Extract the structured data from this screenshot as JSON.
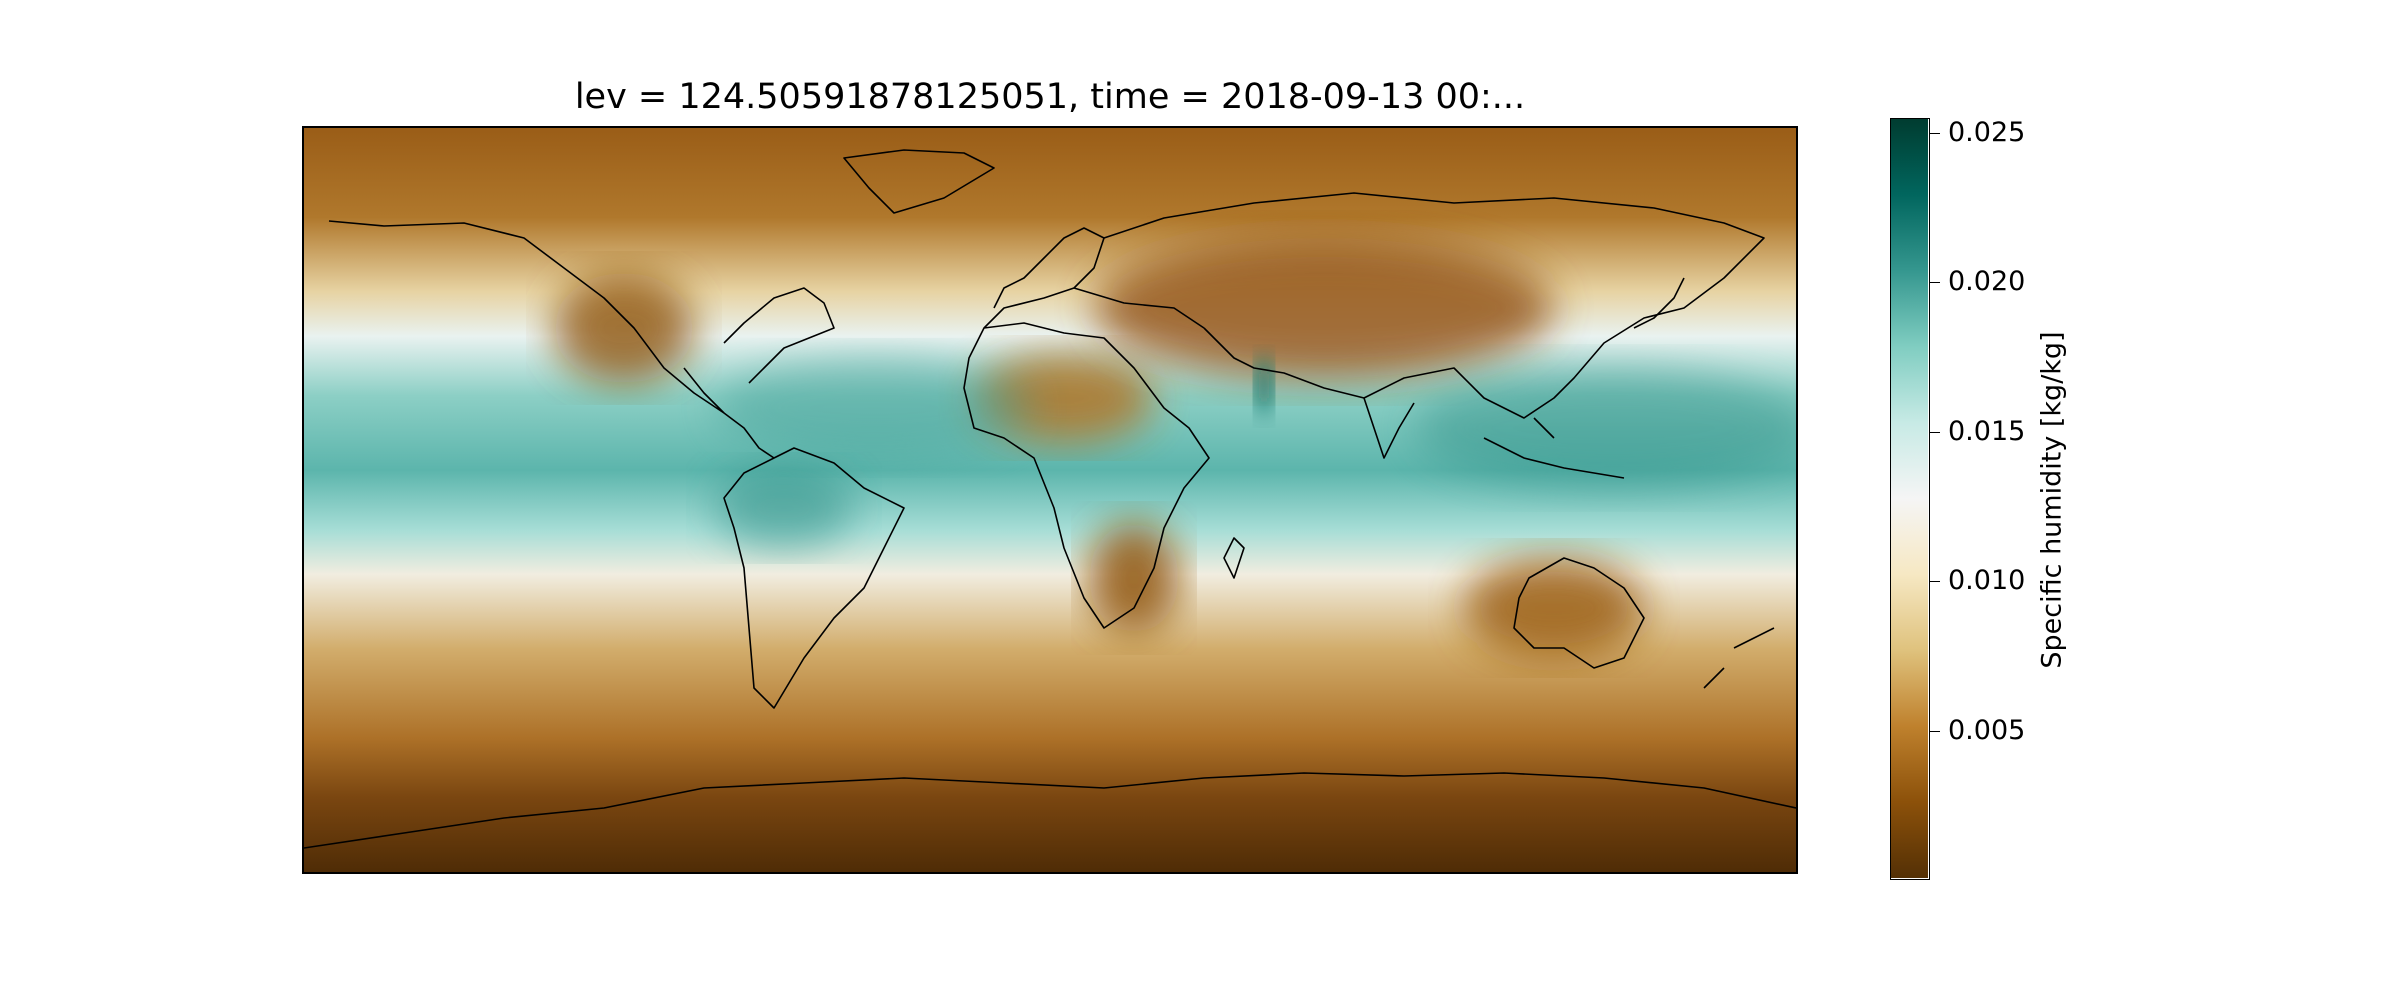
{
  "title": "lev = 124.50591878125051, time = 2018-09-13 00:...",
  "colorbar": {
    "label": "Specific humidity [kg/kg]",
    "min": 0.0,
    "max": 0.0255,
    "ticks": [
      {
        "value": 0.005,
        "label": "0.005"
      },
      {
        "value": 0.01,
        "label": "0.010"
      },
      {
        "value": 0.015,
        "label": "0.015"
      },
      {
        "value": 0.02,
        "label": "0.020"
      },
      {
        "value": 0.025,
        "label": "0.025"
      }
    ],
    "colormap": "BrBG",
    "colors": [
      "#543005",
      "#8c510a",
      "#bf812d",
      "#dfc27d",
      "#f6e8c3",
      "#f5f5f5",
      "#c7eae5",
      "#80cdc1",
      "#35978f",
      "#01665e",
      "#003c30"
    ]
  },
  "map": {
    "projection": "PlateCarree",
    "extent": {
      "lon": [
        -180,
        180
      ],
      "lat": [
        -90,
        90
      ]
    },
    "coastline_color": "#000000"
  }
}
